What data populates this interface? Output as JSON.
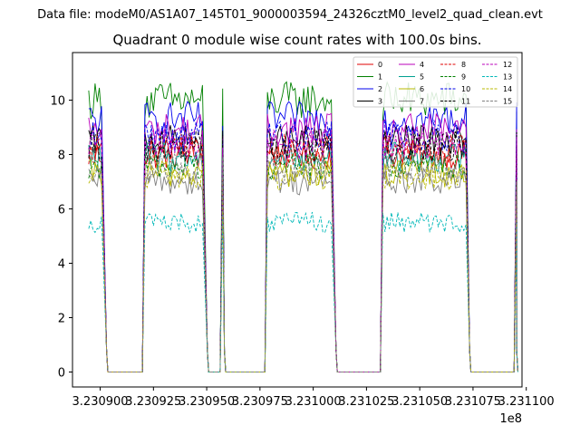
{
  "suptitle": "Data file: modeM0/AS1A07_145T01_9000003594_24326cztM0_level2_quad_clean.evt",
  "chart_data": {
    "type": "line",
    "title": "Quadrant 0 module wise count rates with 100.0s bins.",
    "xlabel": "",
    "ylabel": "",
    "x_offset_label": "1e8",
    "xlim": [
      3.230887,
      3.231098
    ],
    "ylim": [
      -0.55,
      11.75
    ],
    "x_ticks": [
      3.2309,
      3.230925,
      3.23095,
      3.230975,
      3.231,
      3.231025,
      3.23105,
      3.231075,
      3.2311
    ],
    "x_tick_labels": [
      "3.230900",
      "3.230925",
      "3.230950",
      "3.230975",
      "3.231000",
      "3.231025",
      "3.231050",
      "3.231075",
      "3.231100"
    ],
    "y_ticks": [
      0,
      2,
      4,
      6,
      8,
      10
    ],
    "y_tick_labels": [
      "0",
      "2",
      "4",
      "6",
      "8",
      "10"
    ],
    "grid": false,
    "legend_position": "top-right",
    "legend_columns": 4,
    "segments": [
      {
        "x0": 3.2308946,
        "x1": 3.2309015,
        "drop_x": 3.230903
      },
      {
        "x0": 3.230921,
        "x1": 3.2309488,
        "drop_x": 3.2309503
      },
      {
        "x0": 3.2309575,
        "x1": 3.230957,
        "drop_x": 3.2309583
      },
      {
        "x0": 3.2309785,
        "x1": 3.2310092,
        "drop_x": 3.2310107
      },
      {
        "x0": 3.2310327,
        "x1": 3.2310719,
        "drop_x": 3.2310734
      },
      {
        "x0": 3.2310955,
        "x1": 3.231095,
        "drop_x": 3.2310955
      }
    ],
    "series": [
      {
        "name": "0",
        "level": 8.0,
        "color": "#e00000",
        "dash": "solid"
      },
      {
        "name": "1",
        "level": 10.0,
        "color": "#008000",
        "dash": "solid"
      },
      {
        "name": "2",
        "level": 9.3,
        "color": "#0000ee",
        "dash": "solid"
      },
      {
        "name": "3",
        "level": 8.5,
        "color": "#000000",
        "dash": "solid"
      },
      {
        "name": "4",
        "level": 8.9,
        "color": "#bb00bb",
        "dash": "solid"
      },
      {
        "name": "5",
        "level": 7.9,
        "color": "#00a090",
        "dash": "solid"
      },
      {
        "name": "6",
        "level": 7.3,
        "color": "#b8b800",
        "dash": "solid"
      },
      {
        "name": "7",
        "level": 7.0,
        "color": "#808080",
        "dash": "solid"
      },
      {
        "name": "8",
        "level": 8.2,
        "color": "#e00000",
        "dash": "dashed"
      },
      {
        "name": "9",
        "level": 7.6,
        "color": "#008000",
        "dash": "dashed"
      },
      {
        "name": "10",
        "level": 8.7,
        "color": "#0000ee",
        "dash": "dashed"
      },
      {
        "name": "11",
        "level": 8.3,
        "color": "#000000",
        "dash": "dashed"
      },
      {
        "name": "12",
        "level": 8.4,
        "color": "#bb00bb",
        "dash": "dashed"
      },
      {
        "name": "13",
        "level": 5.5,
        "color": "#00b8b8",
        "dash": "dashed"
      },
      {
        "name": "14",
        "level": 7.2,
        "color": "#b8b800",
        "dash": "dashed"
      },
      {
        "name": "15",
        "level": 7.5,
        "color": "#808080",
        "dash": "dashed"
      }
    ]
  }
}
